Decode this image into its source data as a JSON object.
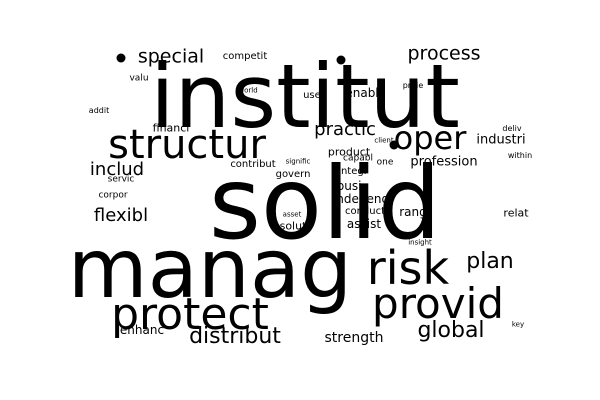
{
  "colors": {
    "background": "#ffffff",
    "text": "#000000"
  },
  "words": [
    "solid",
    "institut",
    "manag",
    "structur",
    "risk",
    "provid",
    "protect",
    "oper",
    "plan",
    "distribut",
    "global",
    "flexibl",
    "includ",
    "process",
    "practic",
    "special",
    "profession",
    "strength",
    "industri",
    "enhanc",
    "product",
    "busi",
    "independ",
    "assist",
    "solut",
    "relat",
    "rang",
    "govern",
    "integr",
    "conduct",
    "capabl",
    "enabl",
    "financi",
    "contribut",
    "competit",
    "user",
    "valu",
    "corpor",
    "servic",
    "addit",
    "world",
    "pride",
    "client",
    "deliv",
    "within",
    "one",
    "signific",
    "asset",
    "insight",
    "key"
  ]
}
